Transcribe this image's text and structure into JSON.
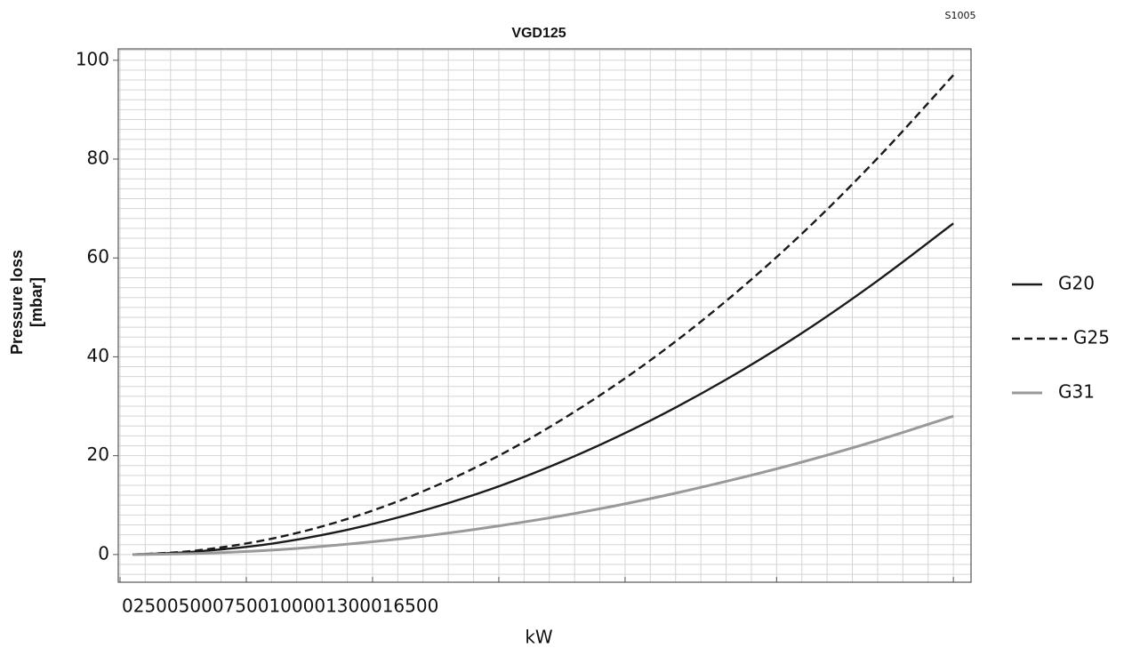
{
  "chart_data": {
    "type": "line",
    "title": "VGD125",
    "code": "S1005",
    "x_label": "kW",
    "y_label": [
      "Pressure loss",
      "[mbar]"
    ],
    "x": [
      250,
      1500,
      3000,
      4500,
      6000,
      7500,
      9000,
      10500,
      12000,
      13500,
      15000,
      16500
    ],
    "series": [
      {
        "name": "G20",
        "color": "#1a1a1a",
        "dash": "solid",
        "values": [
          0.0,
          0.6,
          2.2,
          5.0,
          8.9,
          13.8,
          19.9,
          27.1,
          35.4,
          44.8,
          55.4,
          67
        ]
      },
      {
        "name": "G25",
        "color": "#1a1a1a",
        "dash": "dashed",
        "values": [
          0.0,
          0.8,
          3.2,
          7.2,
          12.8,
          20.0,
          28.9,
          39.3,
          51.3,
          64.9,
          80.2,
          97
        ]
      },
      {
        "name": "G31",
        "color": "#999999",
        "dash": "solid",
        "values": [
          0.0,
          0.2,
          0.9,
          2.1,
          3.7,
          5.8,
          8.3,
          11.3,
          14.8,
          18.7,
          23.1,
          28
        ]
      }
    ],
    "xlim": [
      -35,
      16850
    ],
    "ylim": [
      -5.6,
      102.3
    ],
    "xticks": [
      0,
      2500,
      5000,
      7500,
      10000,
      13000,
      16500
    ],
    "yticks": [
      0,
      20,
      40,
      60,
      80,
      100
    ],
    "grid": {
      "x_step": 500,
      "y_step": 2
    },
    "legend": "right"
  }
}
